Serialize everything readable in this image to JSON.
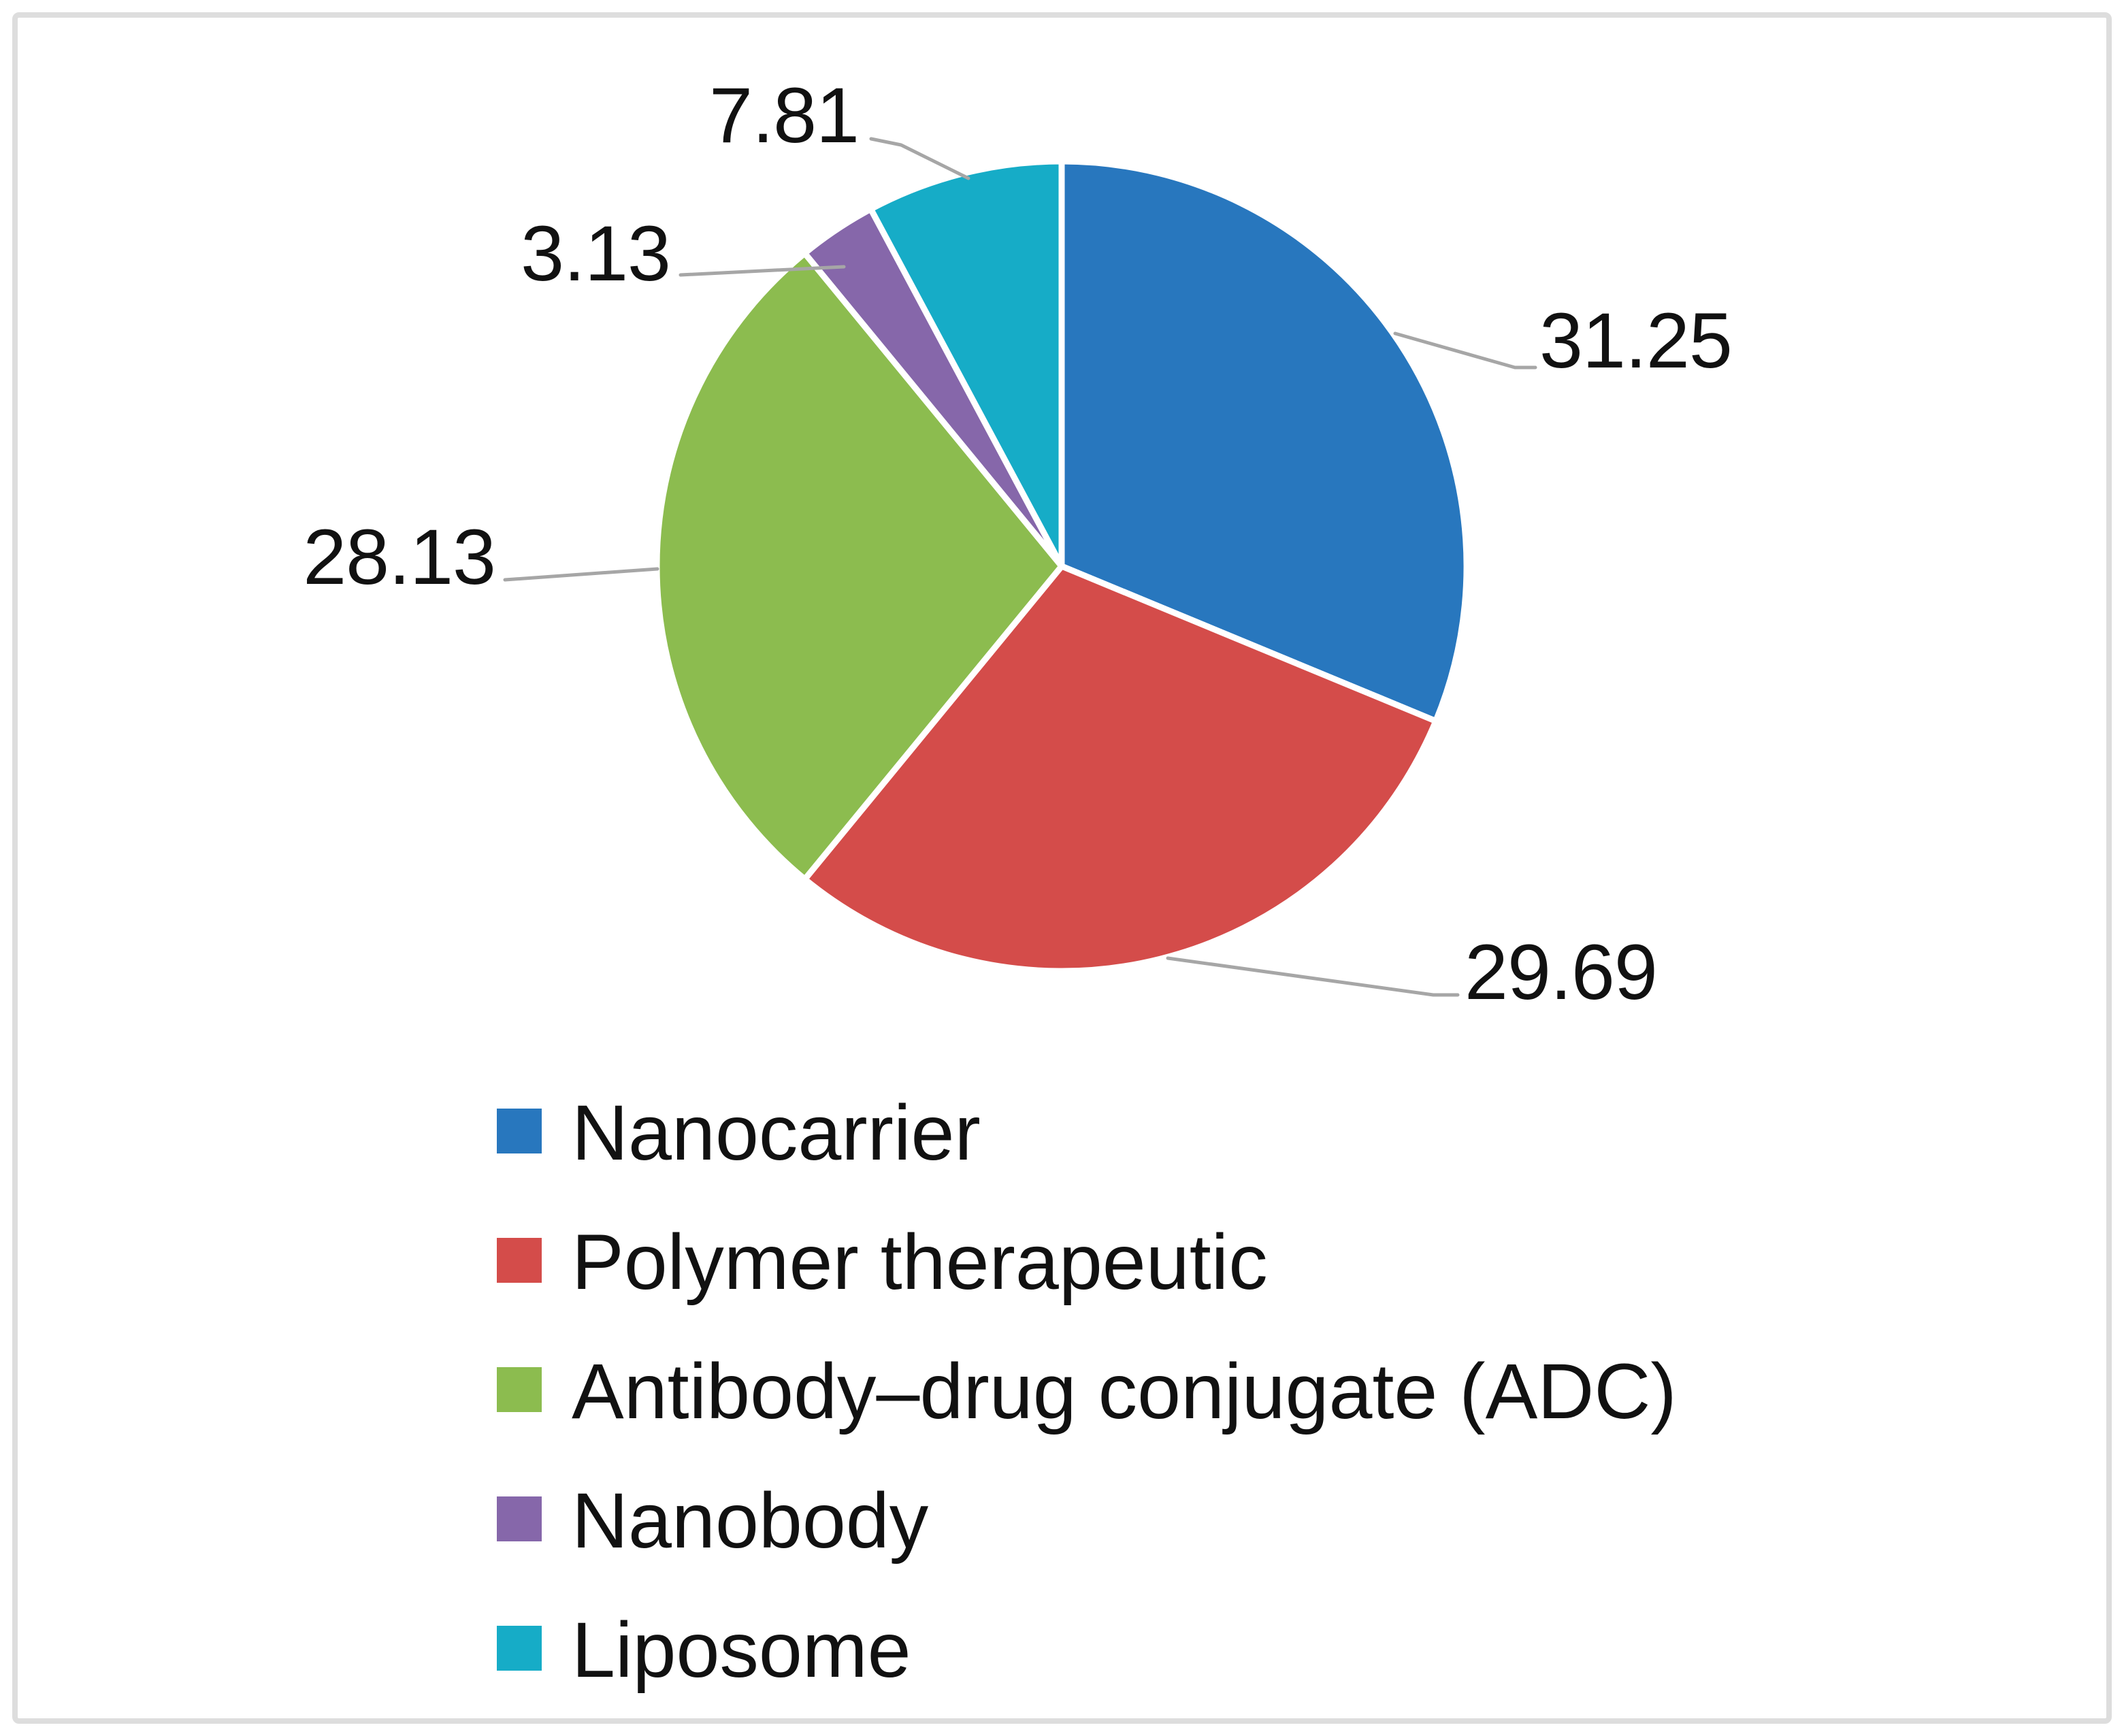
{
  "chart_data": {
    "type": "pie",
    "title": "",
    "categories": [
      "Nanocarrier",
      "Polymer therapeutic",
      "Antibody–drug conjugate (ADC)",
      "Nanobody",
      "Liposome"
    ],
    "values": [
      31.25,
      29.69,
      28.13,
      3.13,
      7.81
    ],
    "value_labels": [
      "31.25",
      "29.69",
      "28.13",
      "3.13",
      "7.81"
    ],
    "colors": [
      "#2877BE",
      "#D44C4A",
      "#8CBC4F",
      "#8667AA",
      "#16ACC7"
    ],
    "start_angle_deg": 0,
    "direction": "clockwise",
    "slice_separator_color": "#FFFFFF",
    "legend_position": "bottom-left",
    "legend_marker": "square",
    "label_color": "#111111",
    "leader_line_color": "#A6A6A6",
    "border_color": "#DDDDDD",
    "background": "#FFFFFF"
  }
}
